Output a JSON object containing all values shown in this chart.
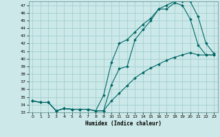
{
  "xlabel": "Humidex (Indice chaleur)",
  "bg_color": "#cce8e8",
  "line_color": "#006666",
  "grid_color": "#99cccc",
  "xlim": [
    -0.5,
    23.5
  ],
  "ylim": [
    33,
    47.5
  ],
  "yticks": [
    33,
    34,
    35,
    36,
    37,
    38,
    39,
    40,
    41,
    42,
    43,
    44,
    45,
    46,
    47
  ],
  "xticks": [
    0,
    1,
    2,
    3,
    4,
    5,
    6,
    7,
    8,
    9,
    10,
    11,
    12,
    13,
    14,
    15,
    16,
    17,
    18,
    19,
    20,
    21,
    22,
    23
  ],
  "series1_x": [
    0,
    1,
    2,
    3,
    4,
    5,
    6,
    7,
    8,
    9,
    10,
    11,
    12,
    13,
    14,
    15,
    16,
    17,
    18,
    19,
    20,
    21,
    22,
    23
  ],
  "series1_y": [
    34.5,
    34.3,
    34.3,
    33.2,
    33.5,
    33.4,
    33.4,
    33.4,
    33.2,
    33.2,
    36.6,
    38.7,
    39.0,
    42.5,
    43.8,
    45.0,
    46.5,
    46.5,
    47.3,
    47.0,
    45.2,
    41.8,
    40.5,
    40.5
  ],
  "series2_x": [
    0,
    1,
    2,
    3,
    4,
    5,
    6,
    7,
    8,
    9,
    10,
    11,
    12,
    13,
    14,
    15,
    16,
    17,
    18,
    19,
    20,
    21,
    22,
    23
  ],
  "series2_y": [
    34.5,
    34.3,
    34.3,
    33.2,
    33.5,
    33.4,
    33.4,
    33.4,
    33.2,
    35.2,
    39.5,
    42.0,
    42.5,
    43.5,
    44.5,
    45.3,
    46.5,
    47.0,
    47.5,
    47.5,
    47.5,
    45.5,
    42.0,
    40.7
  ],
  "series3_x": [
    0,
    1,
    2,
    3,
    4,
    5,
    6,
    7,
    8,
    9,
    10,
    11,
    12,
    13,
    14,
    15,
    16,
    17,
    18,
    19,
    20,
    21,
    22,
    23
  ],
  "series3_y": [
    34.5,
    34.3,
    34.3,
    33.2,
    33.5,
    33.4,
    33.4,
    33.4,
    33.2,
    33.2,
    34.5,
    35.5,
    36.5,
    37.5,
    38.2,
    38.8,
    39.3,
    39.8,
    40.2,
    40.5,
    40.8,
    40.5,
    40.5,
    40.5
  ]
}
